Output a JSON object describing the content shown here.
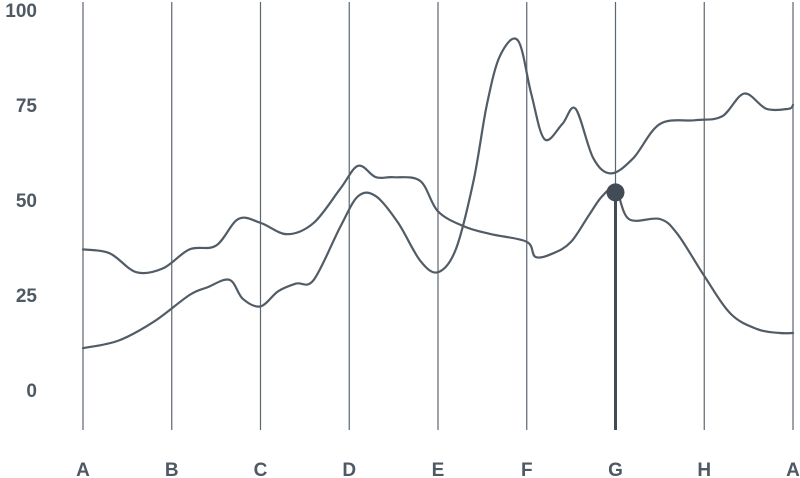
{
  "chart_data": {
    "type": "line",
    "categories": [
      "A",
      "B",
      "C",
      "D",
      "E",
      "F",
      "G",
      "H",
      "A"
    ],
    "yticks": [
      "0",
      "25",
      "50",
      "75",
      "100"
    ],
    "ylim": [
      0,
      100
    ],
    "grid": "vertical",
    "series": [
      {
        "values": [
          [
            0,
            37
          ],
          [
            0.3,
            36
          ],
          [
            0.6,
            31
          ],
          [
            0.9,
            32
          ],
          [
            1.2,
            37
          ],
          [
            1.5,
            38
          ],
          [
            1.75,
            45
          ],
          [
            2.0,
            44
          ],
          [
            2.3,
            41
          ],
          [
            2.6,
            44
          ],
          [
            2.9,
            53
          ],
          [
            3.1,
            59
          ],
          [
            3.3,
            56
          ],
          [
            3.5,
            56
          ],
          [
            3.8,
            55
          ],
          [
            4.0,
            47
          ],
          [
            4.3,
            43
          ],
          [
            4.6,
            41
          ],
          [
            5.0,
            39
          ],
          [
            5.1,
            35
          ],
          [
            5.3,
            36
          ],
          [
            5.5,
            39
          ],
          [
            5.7,
            46
          ],
          [
            5.85,
            51
          ],
          [
            6.0,
            53
          ],
          [
            6.15,
            45
          ],
          [
            6.5,
            45
          ],
          [
            6.7,
            41
          ],
          [
            7.0,
            30
          ],
          [
            7.3,
            20
          ],
          [
            7.6,
            16
          ],
          [
            7.85,
            15
          ],
          [
            8.0,
            15
          ]
        ],
        "color": "#525c66"
      },
      {
        "values": [
          [
            0,
            11
          ],
          [
            0.4,
            13
          ],
          [
            0.8,
            18
          ],
          [
            1.2,
            25
          ],
          [
            1.4,
            27
          ],
          [
            1.65,
            29
          ],
          [
            1.8,
            24
          ],
          [
            2.0,
            22
          ],
          [
            2.2,
            26
          ],
          [
            2.4,
            28
          ],
          [
            2.6,
            29
          ],
          [
            2.9,
            43
          ],
          [
            3.1,
            51
          ],
          [
            3.3,
            51
          ],
          [
            3.55,
            44
          ],
          [
            3.8,
            34
          ],
          [
            4.0,
            31
          ],
          [
            4.2,
            37
          ],
          [
            4.4,
            55
          ],
          [
            4.55,
            75
          ],
          [
            4.7,
            88
          ],
          [
            4.9,
            92
          ],
          [
            5.05,
            78
          ],
          [
            5.2,
            66
          ],
          [
            5.4,
            70
          ],
          [
            5.55,
            74
          ],
          [
            5.75,
            61
          ],
          [
            5.95,
            57
          ],
          [
            6.2,
            61
          ],
          [
            6.5,
            70
          ],
          [
            6.9,
            71
          ],
          [
            7.2,
            72
          ],
          [
            7.45,
            78
          ],
          [
            7.7,
            74
          ],
          [
            7.95,
            74
          ],
          [
            8.0,
            75
          ]
        ],
        "color": "#525c66"
      }
    ],
    "highlight": {
      "x": 6,
      "y": 52,
      "color": "#434c56"
    }
  }
}
